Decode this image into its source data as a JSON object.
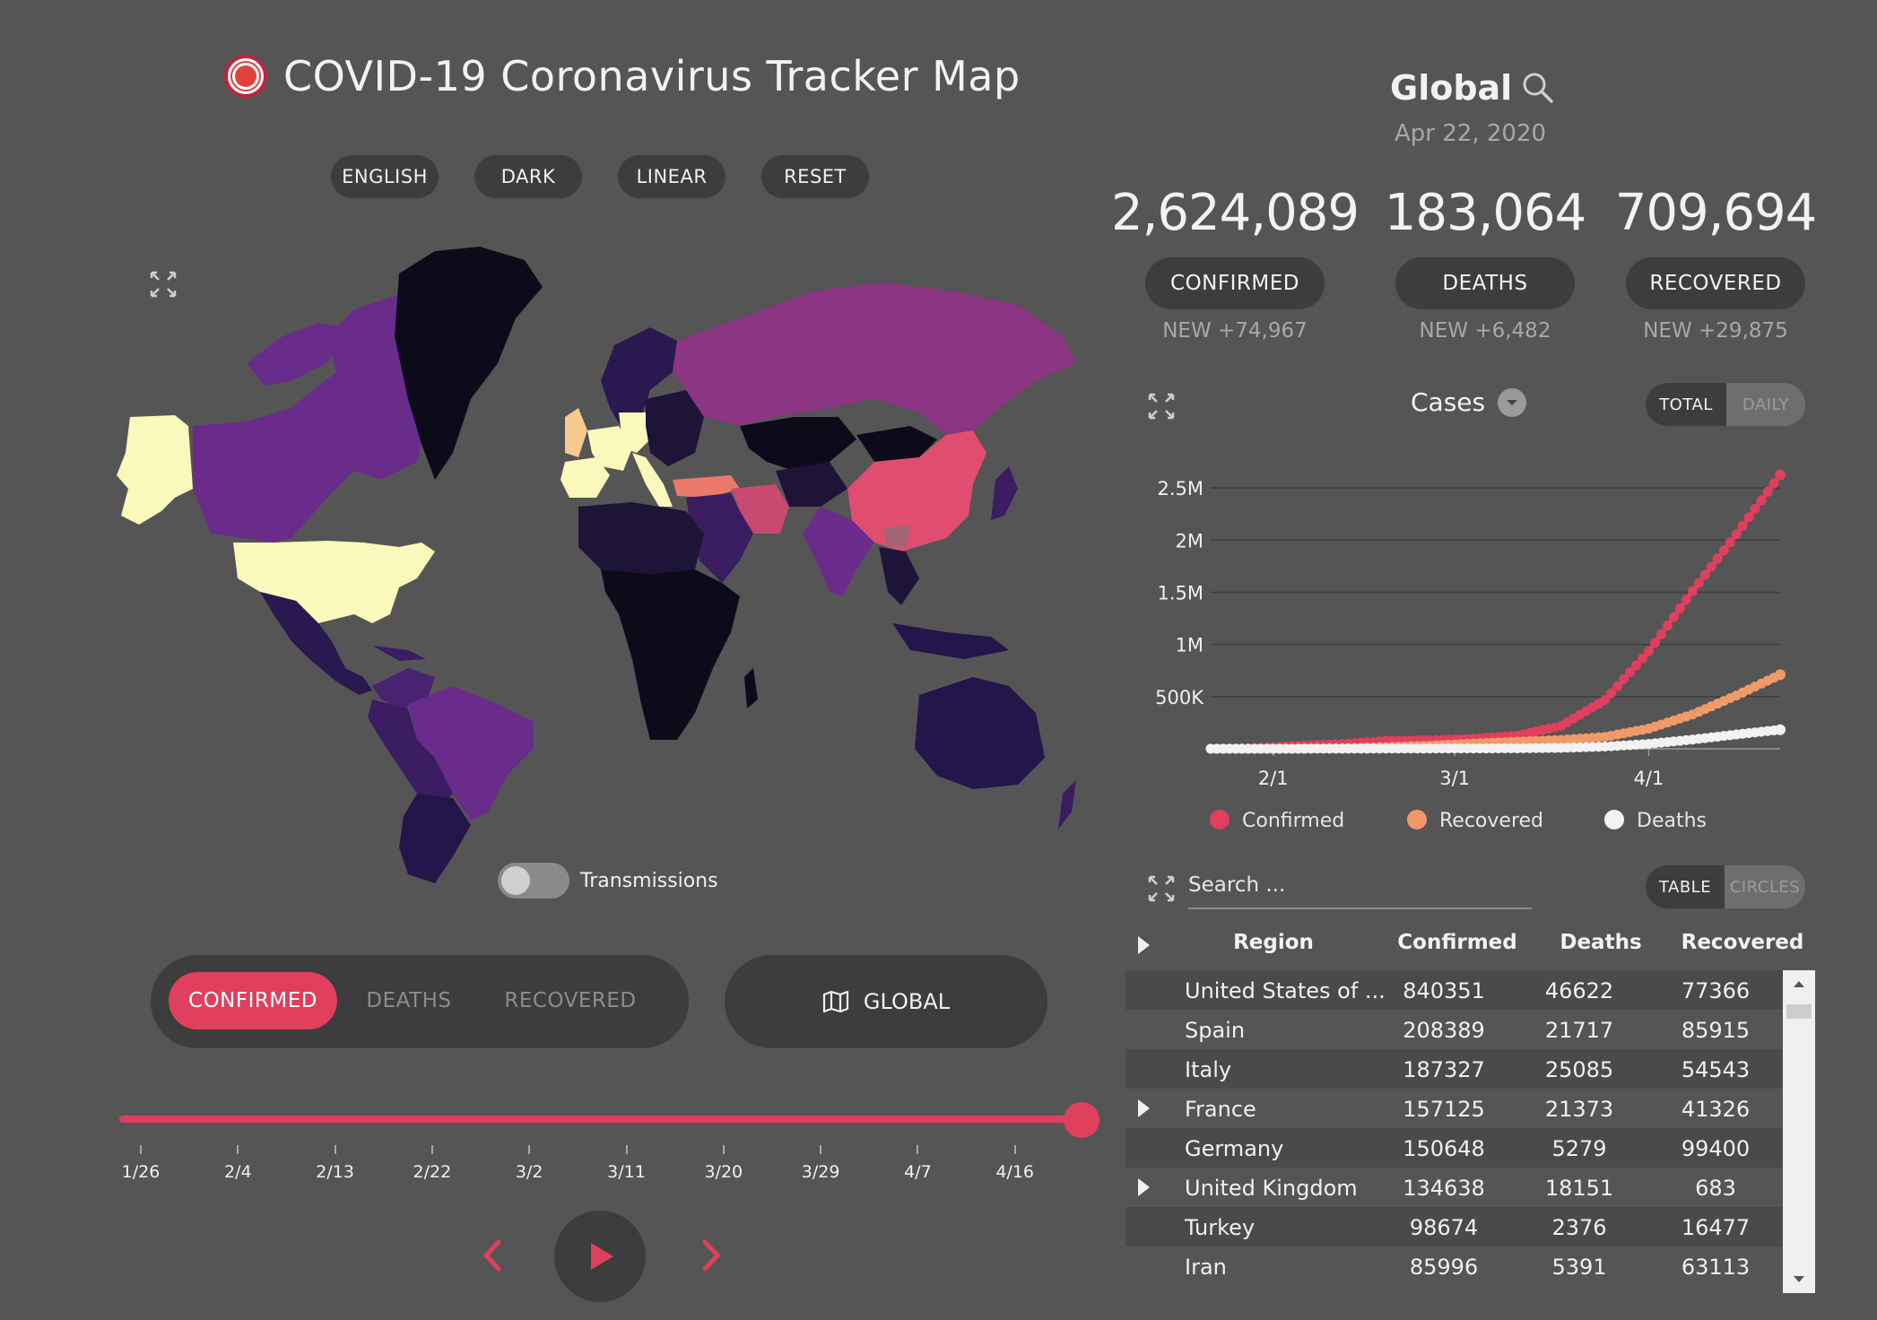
{
  "header": {
    "title": "COVID-19 Coronavirus Tracker Map",
    "buttons": [
      "ENGLISH",
      "DARK",
      "LINEAR",
      "RESET"
    ]
  },
  "map": {
    "transmissions_label": "Transmissions",
    "transmissions_on": false
  },
  "metric_selector": {
    "confirmed": "CONFIRMED",
    "deaths": "DEATHS",
    "recovered": "RECOVERED",
    "selected": "CONFIRMED"
  },
  "region_button": {
    "label": "GLOBAL",
    "icon": "map-icon"
  },
  "timeline": {
    "ticks": [
      "1/26",
      "2/4",
      "2/13",
      "2/22",
      "3/2",
      "3/11",
      "3/20",
      "3/29",
      "4/7",
      "4/16"
    ],
    "progress": 1.0
  },
  "playback": {
    "prev_icon": "chevron-left-icon",
    "play_icon": "play-icon",
    "next_icon": "chevron-right-icon"
  },
  "summary": {
    "region": "Global",
    "date": "Apr 22, 2020",
    "confirmed": {
      "value": "2,624,089",
      "label": "CONFIRMED",
      "new": "NEW +74,967"
    },
    "deaths": {
      "value": "183,064",
      "label": "DEATHS",
      "new": "NEW +6,482"
    },
    "recovered": {
      "value": "709,694",
      "label": "RECOVERED",
      "new": "NEW +29,875"
    }
  },
  "chart_panel": {
    "title": "Cases",
    "mode_total": "TOTAL",
    "mode_daily": "DAILY",
    "selected_mode": "TOTAL"
  },
  "colors": {
    "confirmed": "#e03f5d",
    "recovered": "#f09a6a",
    "deaths": "#f2f2f2",
    "accent": "#e03f5d"
  },
  "chart_data": {
    "type": "line",
    "y_tick_labels": [
      "2.5M",
      "2M",
      "1.5M",
      "1M",
      "500K"
    ],
    "y_ticks": [
      2500000,
      2000000,
      1500000,
      1000000,
      500000
    ],
    "ylim": [
      0,
      2750000
    ],
    "x_tick_labels": [
      "2/1",
      "3/1",
      "4/1"
    ],
    "x": [
      "1/22",
      "1/29",
      "2/5",
      "2/12",
      "2/19",
      "2/26",
      "3/4",
      "3/11",
      "3/18",
      "3/25",
      "4/1",
      "4/8",
      "4/15",
      "4/22"
    ],
    "series": [
      {
        "name": "Confirmed",
        "values": [
          555,
          7783,
          28276,
          45171,
          75641,
          81402,
          95120,
          126214,
          218822,
          467653,
          932605,
          1511104,
          2056054,
          2624089
        ]
      },
      {
        "name": "Recovered",
        "values": [
          28,
          133,
          1124,
          5150,
          16121,
          30384,
          51170,
          68324,
          84975,
          113770,
          193177,
          328661,
          510359,
          709694
        ]
      },
      {
        "name": "Deaths",
        "values": [
          17,
          170,
          565,
          1118,
          2129,
          2770,
          3281,
          4615,
          8733,
          21181,
          46809,
          88338,
          137078,
          183064
        ]
      }
    ],
    "legend": [
      "Confirmed",
      "Recovered",
      "Deaths"
    ],
    "grid": true
  },
  "table_panel": {
    "search_placeholder": "Search ...",
    "mode_table": "TABLE",
    "mode_circles": "CIRCLES",
    "selected_mode": "TABLE",
    "columns": [
      "Region",
      "Confirmed",
      "Deaths",
      "Recovered"
    ],
    "rows": [
      {
        "region": "United States of ...",
        "confirmed": "840351",
        "deaths": "46622",
        "recovered": "77366",
        "expandable": false
      },
      {
        "region": "Spain",
        "confirmed": "208389",
        "deaths": "21717",
        "recovered": "85915",
        "expandable": false
      },
      {
        "region": "Italy",
        "confirmed": "187327",
        "deaths": "25085",
        "recovered": "54543",
        "expandable": false
      },
      {
        "region": "France",
        "confirmed": "157125",
        "deaths": "21373",
        "recovered": "41326",
        "expandable": true
      },
      {
        "region": "Germany",
        "confirmed": "150648",
        "deaths": "5279",
        "recovered": "99400",
        "expandable": false
      },
      {
        "region": "United Kingdom",
        "confirmed": "134638",
        "deaths": "18151",
        "recovered": "683",
        "expandable": true
      },
      {
        "region": "Turkey",
        "confirmed": "98674",
        "deaths": "2376",
        "recovered": "16477",
        "expandable": false
      },
      {
        "region": "Iran",
        "confirmed": "85996",
        "deaths": "5391",
        "recovered": "63113",
        "expandable": false
      }
    ]
  }
}
